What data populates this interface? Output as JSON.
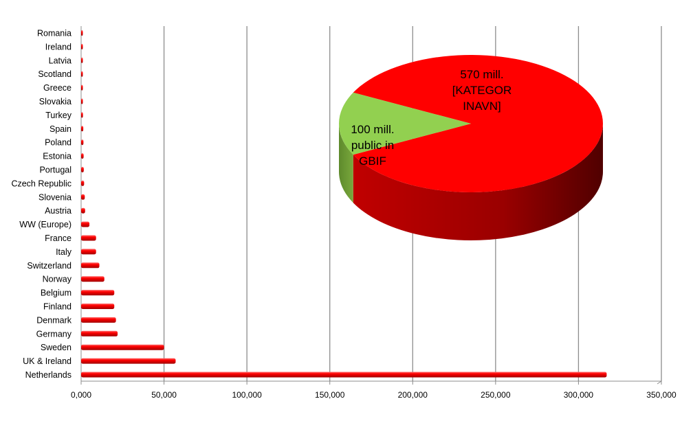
{
  "chart_data": [
    {
      "type": "bar",
      "orientation": "horizontal",
      "categories": [
        "Romania",
        "Ireland",
        "Latvia",
        "Scotland",
        "Greece",
        "Slovakia",
        "Turkey",
        "Spain",
        "Poland",
        "Estonia",
        "Portugal",
        "Czech Republic",
        "Slovenia",
        "Austria",
        "WW (Europe)",
        "France",
        "Italy",
        "Switzerland",
        "Norway",
        "Belgium",
        "Finland",
        "Denmark",
        "Germany",
        "Sweden",
        "UK & Ireland",
        "Netherlands"
      ],
      "values": [
        500,
        600,
        700,
        800,
        900,
        1000,
        1100,
        1300,
        1400,
        1500,
        1600,
        1800,
        2200,
        2400,
        5000,
        9000,
        9000,
        11000,
        14000,
        20000,
        20000,
        21000,
        22000,
        50000,
        57000,
        317000
      ],
      "xlim": [
        0,
        350000
      ],
      "tick_labels": [
        "0,000",
        "50,000",
        "100,000",
        "150,000",
        "200,000",
        "250,000",
        "300,000",
        "350,000"
      ],
      "grid": true,
      "bar_color": "#ff0000"
    },
    {
      "type": "pie",
      "style": "3d",
      "slices": [
        {
          "value": 570,
          "label_lines": [
            "570 mill.",
            "[KATEGOR",
            "INAVN]"
          ],
          "color": "#ff0000"
        },
        {
          "value": 100,
          "label_lines": [
            "100 mill.",
            "public in",
            "GBIF"
          ],
          "color": "#92d050"
        }
      ]
    }
  ]
}
